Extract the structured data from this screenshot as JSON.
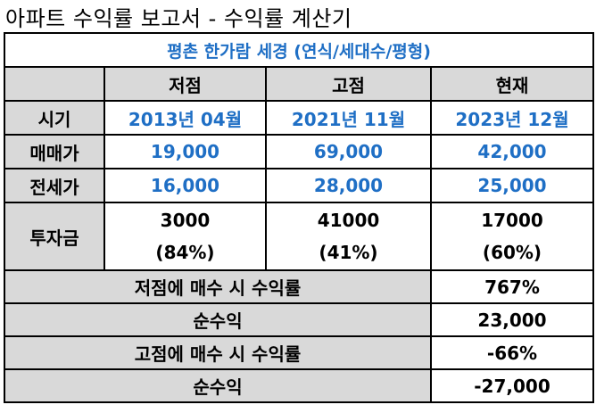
{
  "title": "아파트 수익률 보고서 - 수익률 계산기",
  "subtitle": "평촌 한가람 세경 (연식/세대수/평형)",
  "columns": [
    "저점",
    "고점",
    "현재"
  ],
  "rows": {
    "period": {
      "label": "시기",
      "values": [
        "2013년 04월",
        "2021년 11월",
        "2023년 12월"
      ]
    },
    "sale": {
      "label": "매매가",
      "values": [
        "19,000",
        "69,000",
        "42,000"
      ]
    },
    "jeonse": {
      "label": "전세가",
      "values": [
        "16,000",
        "28,000",
        "25,000"
      ]
    },
    "invest": {
      "label": "투자금",
      "amounts": [
        "3000",
        "41000",
        "17000"
      ],
      "ratios": [
        "(84%)",
        "(41%)",
        "(60%)"
      ]
    }
  },
  "summary": [
    {
      "label": "저점에 매수 시 수익률",
      "value": "767%"
    },
    {
      "label": "순수익",
      "value": "23,000"
    },
    {
      "label": "고점에 매수 시 수익률",
      "value": "-66%"
    },
    {
      "label": "순수익",
      "value": "-27,000"
    }
  ],
  "colors": {
    "accent_blue": "#1f6fc5",
    "header_gray": "#d9d9d9"
  }
}
